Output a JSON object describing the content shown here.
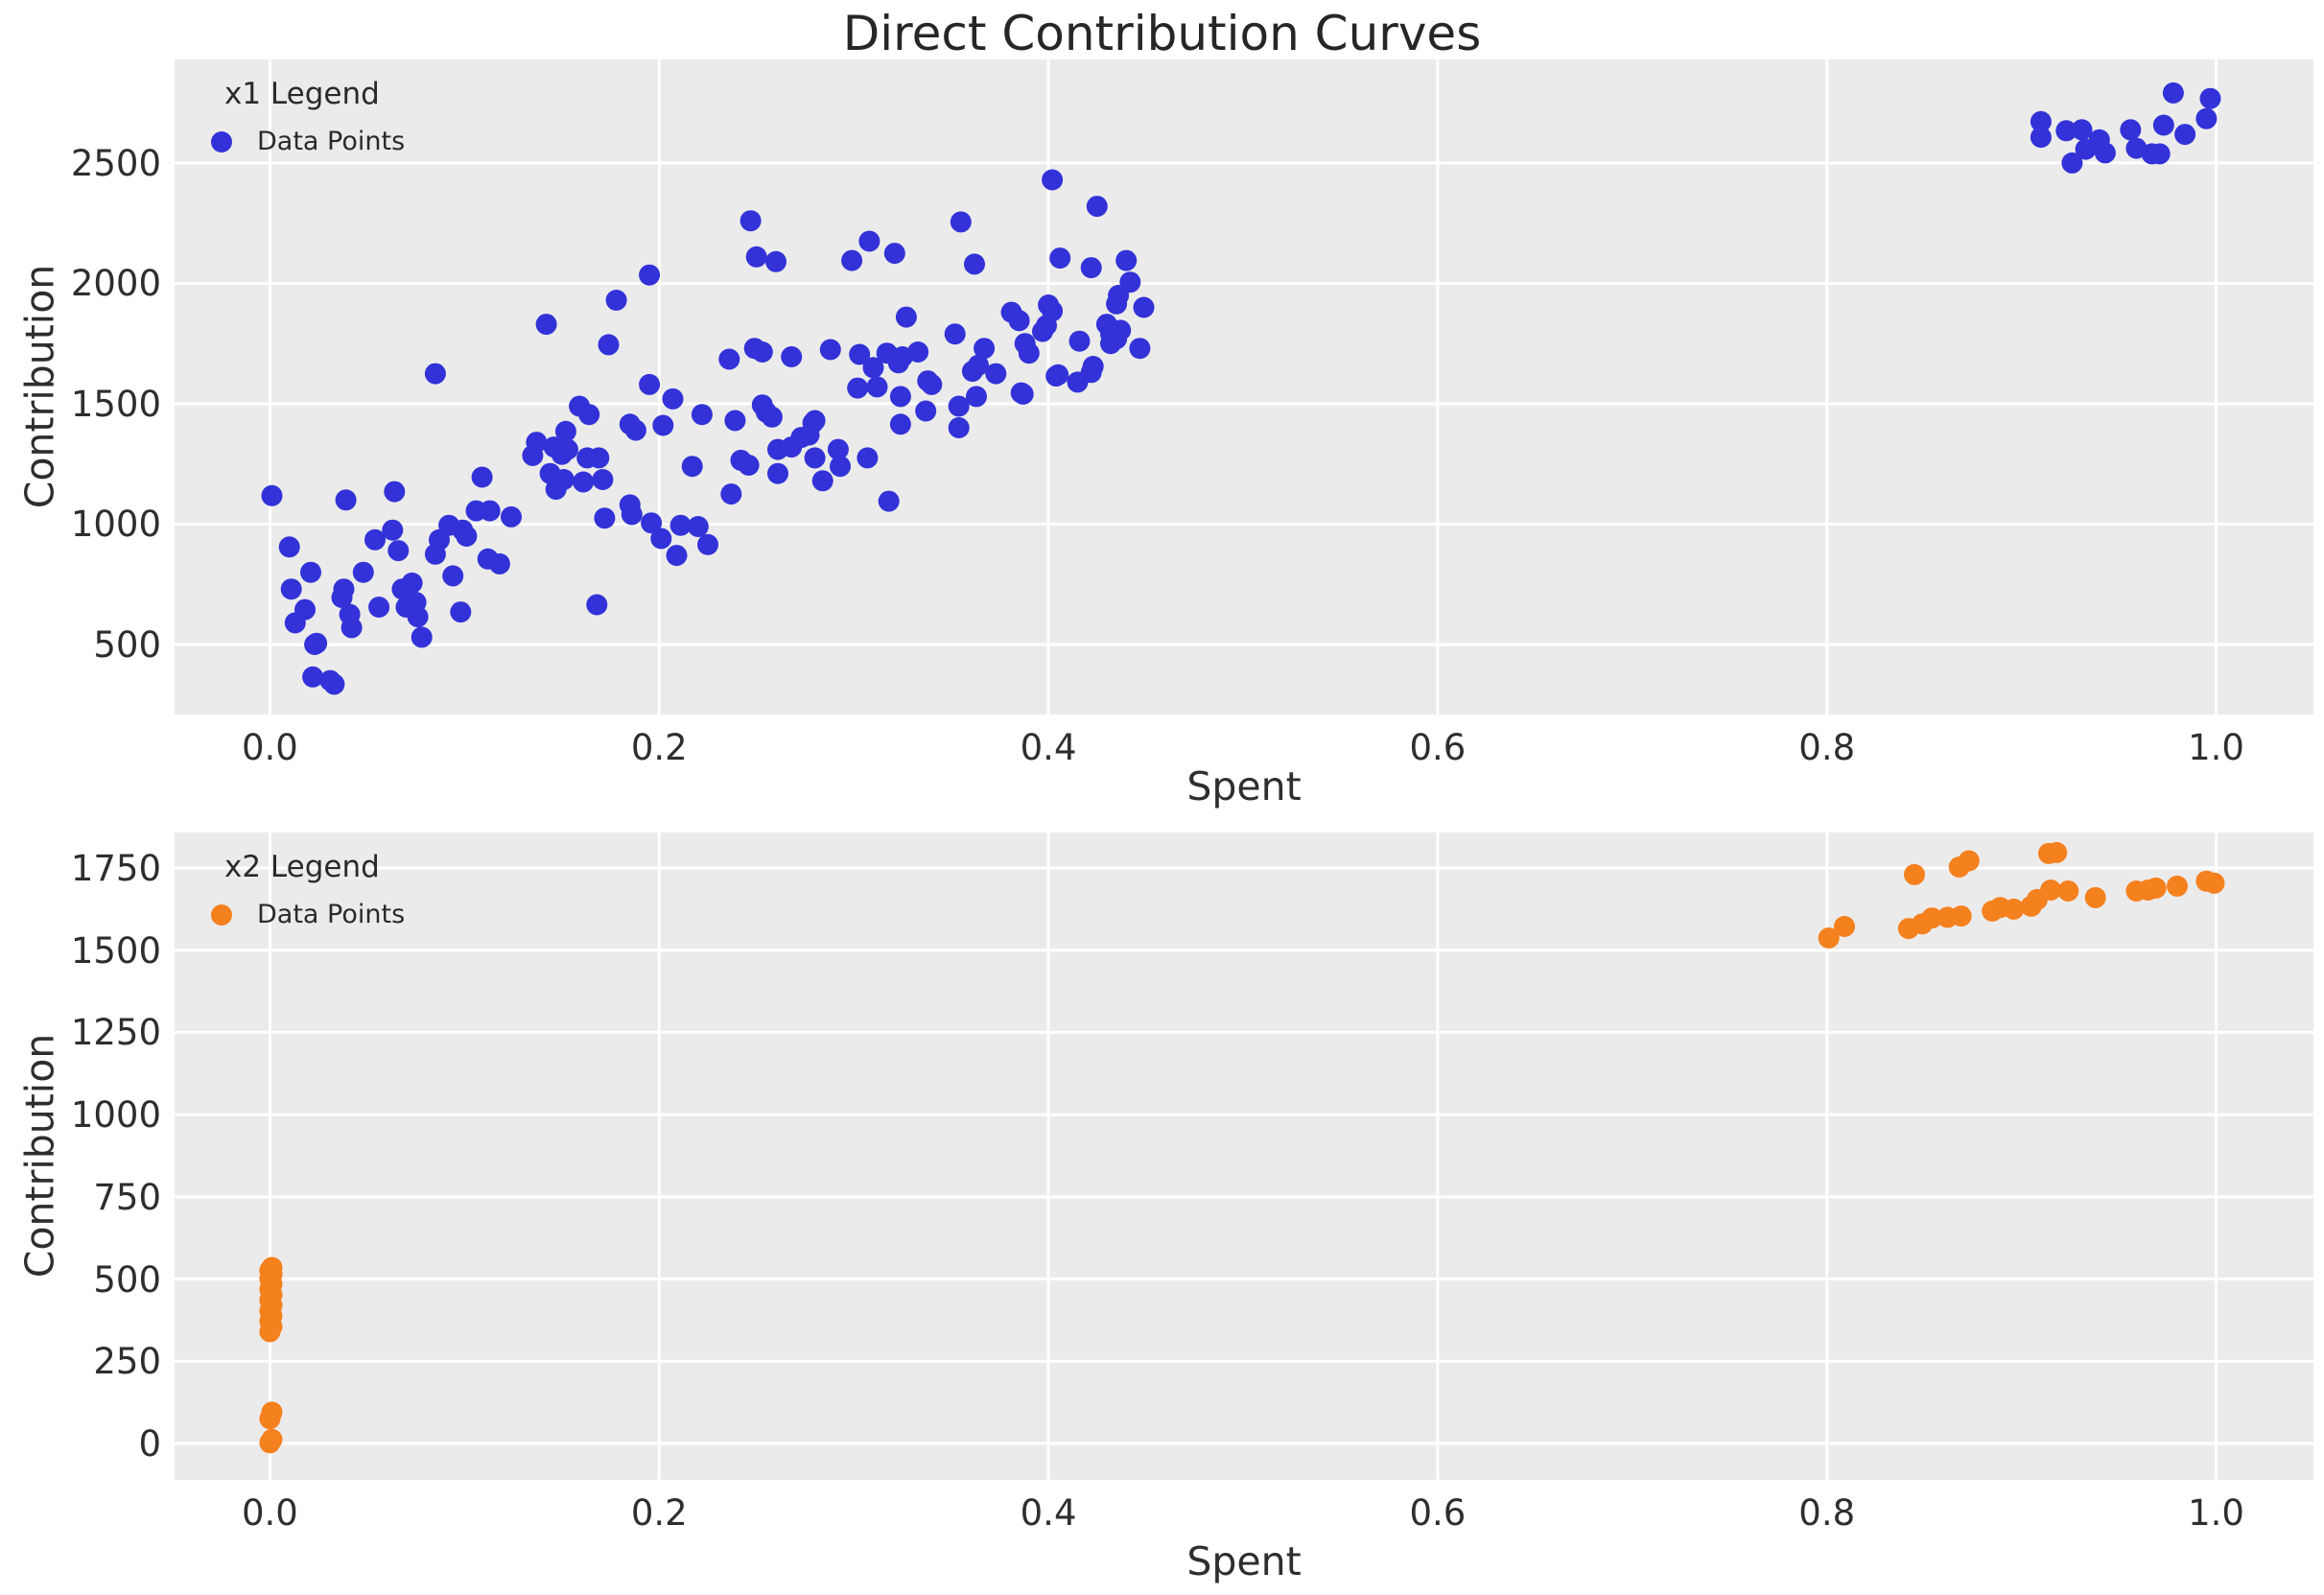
{
  "title": "Direct Contribution Curves",
  "colors": {
    "figure_bg": "#ffffff",
    "plot_bg": "#ebebeb",
    "grid": "#ffffff",
    "text": "#2e2e2e",
    "series1": "#3232d8",
    "series2": "#f5801e"
  },
  "chart_data": [
    {
      "type": "scatter",
      "subplot": "top",
      "xlabel": "Spent",
      "ylabel": "Contribution",
      "legend": {
        "title": "x1 Legend",
        "entries": [
          {
            "label": "Data Points",
            "color": "#3232d8"
          }
        ]
      },
      "legend_position": "upper-left",
      "grid": true,
      "xlim": [
        -0.049,
        1.05
      ],
      "ylim": [
        209,
        2930
      ],
      "xtick_values": [
        0.0,
        0.2,
        0.4,
        0.6,
        0.8,
        1.0
      ],
      "xtick_labels": [
        "0.0",
        "0.2",
        "0.4",
        "0.6",
        "0.8",
        "1.0"
      ],
      "ytick_values": [
        500,
        1000,
        1500,
        2000,
        2500
      ],
      "ytick_labels": [
        "500",
        "1000",
        "1500",
        "2000",
        "2500"
      ],
      "series": [
        {
          "name": "Data Points",
          "color": "#3232d8",
          "marker": "circle",
          "points": [
            [
              0.001,
              1118
            ],
            [
              0.01,
              905
            ],
            [
              0.011,
              730
            ],
            [
              0.013,
              590
            ],
            [
              0.018,
              645
            ],
            [
              0.021,
              800
            ],
            [
              0.022,
              365
            ],
            [
              0.023,
              500
            ],
            [
              0.024,
              505
            ],
            [
              0.031,
              350
            ],
            [
              0.033,
              335
            ],
            [
              0.037,
              695
            ],
            [
              0.038,
              730
            ],
            [
              0.039,
              1100
            ],
            [
              0.041,
              625
            ],
            [
              0.042,
              570
            ],
            [
              0.048,
              800
            ],
            [
              0.054,
              935
            ],
            [
              0.056,
              655
            ],
            [
              0.064,
              1135
            ],
            [
              0.063,
              975
            ],
            [
              0.066,
              890
            ],
            [
              0.068,
              730
            ],
            [
              0.07,
              655
            ],
            [
              0.073,
              755
            ],
            [
              0.075,
              675
            ],
            [
              0.076,
              615
            ],
            [
              0.078,
              530
            ],
            [
              0.085,
              875
            ],
            [
              0.085,
              1625
            ],
            [
              0.087,
              935
            ],
            [
              0.092,
              995
            ],
            [
              0.094,
              785
            ],
            [
              0.098,
              635
            ],
            [
              0.099,
              975
            ],
            [
              0.101,
              950
            ],
            [
              0.106,
              1055
            ],
            [
              0.109,
              1195
            ],
            [
              0.112,
              855
            ],
            [
              0.113,
              1055
            ],
            [
              0.118,
              835
            ],
            [
              0.124,
              1030
            ],
            [
              0.135,
              1285
            ],
            [
              0.137,
              1340
            ],
            [
              0.142,
              1830
            ],
            [
              0.144,
              1210
            ],
            [
              0.146,
              1320
            ],
            [
              0.147,
              1145
            ],
            [
              0.15,
              1290
            ],
            [
              0.151,
              1185
            ],
            [
              0.152,
              1385
            ],
            [
              0.153,
              1310
            ],
            [
              0.159,
              1490
            ],
            [
              0.161,
              1175
            ],
            [
              0.163,
              1275
            ],
            [
              0.164,
              1455
            ],
            [
              0.168,
              665
            ],
            [
              0.169,
              1275
            ],
            [
              0.171,
              1185
            ],
            [
              0.172,
              1025
            ],
            [
              0.174,
              1745
            ],
            [
              0.178,
              1930
            ],
            [
              0.185,
              1415
            ],
            [
              0.185,
              1080
            ],
            [
              0.186,
              1040
            ],
            [
              0.188,
              1390
            ],
            [
              0.195,
              2035
            ],
            [
              0.195,
              1580
            ],
            [
              0.196,
              1005
            ],
            [
              0.201,
              940
            ],
            [
              0.202,
              1410
            ],
            [
              0.207,
              1520
            ],
            [
              0.209,
              870
            ],
            [
              0.211,
              995
            ],
            [
              0.217,
              1240
            ],
            [
              0.22,
              990
            ],
            [
              0.222,
              1455
            ],
            [
              0.225,
              915
            ],
            [
              0.236,
              1685
            ],
            [
              0.237,
              1125
            ],
            [
              0.239,
              1430
            ],
            [
              0.242,
              1265
            ],
            [
              0.246,
              1245
            ],
            [
              0.247,
              2260
            ],
            [
              0.249,
              1730
            ],
            [
              0.25,
              2110
            ],
            [
              0.253,
              1495
            ],
            [
              0.253,
              1715
            ],
            [
              0.255,
              1465
            ],
            [
              0.258,
              1445
            ],
            [
              0.26,
              2090
            ],
            [
              0.261,
              1310
            ],
            [
              0.261,
              1210
            ],
            [
              0.268,
              1695
            ],
            [
              0.268,
              1320
            ],
            [
              0.273,
              1360
            ],
            [
              0.277,
              1370
            ],
            [
              0.279,
              1420
            ],
            [
              0.28,
              1430
            ],
            [
              0.28,
              1275
            ],
            [
              0.284,
              1180
            ],
            [
              0.288,
              1725
            ],
            [
              0.292,
              1310
            ],
            [
              0.293,
              1240
            ],
            [
              0.299,
              2095
            ],
            [
              0.302,
              1565
            ],
            [
              0.303,
              1705
            ],
            [
              0.307,
              1275
            ],
            [
              0.308,
              2175
            ],
            [
              0.31,
              1650
            ],
            [
              0.312,
              1570
            ],
            [
              0.317,
              1710
            ],
            [
              0.318,
              1095
            ],
            [
              0.321,
              2125
            ],
            [
              0.323,
              1670
            ],
            [
              0.324,
              1415
            ],
            [
              0.324,
              1530
            ],
            [
              0.325,
              1695
            ],
            [
              0.327,
              1860
            ],
            [
              0.333,
              1715
            ],
            [
              0.337,
              1470
            ],
            [
              0.338,
              1595
            ],
            [
              0.34,
              1580
            ],
            [
              0.352,
              1790
            ],
            [
              0.354,
              1490
            ],
            [
              0.354,
              1400
            ],
            [
              0.355,
              2255
            ],
            [
              0.361,
              1635
            ],
            [
              0.362,
              2080
            ],
            [
              0.363,
              1530
            ],
            [
              0.364,
              1660
            ],
            [
              0.367,
              1730
            ],
            [
              0.373,
              1625
            ],
            [
              0.381,
              1880
            ],
            [
              0.385,
              1845
            ],
            [
              0.386,
              1545
            ],
            [
              0.387,
              1540
            ],
            [
              0.388,
              1750
            ],
            [
              0.39,
              1710
            ],
            [
              0.397,
              1800
            ],
            [
              0.399,
              1825
            ],
            [
              0.4,
              1910
            ],
            [
              0.402,
              2430
            ],
            [
              0.402,
              1885
            ],
            [
              0.404,
              1615
            ],
            [
              0.405,
              1620
            ],
            [
              0.406,
              2105
            ],
            [
              0.415,
              1590
            ],
            [
              0.416,
              1760
            ],
            [
              0.422,
              2065
            ],
            [
              0.422,
              1630
            ],
            [
              0.423,
              1655
            ],
            [
              0.425,
              2320
            ],
            [
              0.43,
              1830
            ],
            [
              0.432,
              1790
            ],
            [
              0.432,
              1750
            ],
            [
              0.435,
              1915
            ],
            [
              0.435,
              1770
            ],
            [
              0.436,
              1950
            ],
            [
              0.437,
              1805
            ],
            [
              0.44,
              2095
            ],
            [
              0.442,
              2005
            ],
            [
              0.447,
              1730
            ],
            [
              0.449,
              1900
            ],
            [
              0.91,
              2672
            ],
            [
              0.91,
              2607
            ],
            [
              0.923,
              2634
            ],
            [
              0.926,
              2500
            ],
            [
              0.931,
              2638
            ],
            [
              0.933,
              2557
            ],
            [
              0.94,
              2596
            ],
            [
              0.943,
              2542
            ],
            [
              0.956,
              2638
            ],
            [
              0.959,
              2561
            ],
            [
              0.967,
              2538
            ],
            [
              0.971,
              2538
            ],
            [
              0.973,
              2657
            ],
            [
              0.978,
              2791
            ],
            [
              0.984,
              2619
            ],
            [
              0.995,
              2684
            ],
            [
              0.997,
              2768
            ]
          ]
        }
      ]
    },
    {
      "type": "scatter",
      "subplot": "bottom",
      "xlabel": "Spent",
      "ylabel": "Contribution",
      "legend": {
        "title": "x2 Legend",
        "entries": [
          {
            "label": "Data Points",
            "color": "#f5801e"
          }
        ]
      },
      "legend_position": "upper-left",
      "grid": true,
      "xlim": [
        -0.049,
        1.05
      ],
      "ylim": [
        -111,
        1858
      ],
      "xtick_values": [
        0.0,
        0.2,
        0.4,
        0.6,
        0.8,
        1.0
      ],
      "xtick_labels": [
        "0.0",
        "0.2",
        "0.4",
        "0.6",
        "0.8",
        "1.0"
      ],
      "ytick_values": [
        0,
        250,
        500,
        750,
        1000,
        1250,
        1500,
        1750
      ],
      "ytick_labels": [
        "0",
        "250",
        "500",
        "750",
        "1000",
        "1250",
        "1500",
        "1750"
      ],
      "series": [
        {
          "name": "Data Points",
          "color": "#f5801e",
          "marker": "circle",
          "points": [
            [
              0.0,
              2
            ],
            [
              0.001,
              12
            ],
            [
              0.0,
              75
            ],
            [
              0.001,
              95
            ],
            [
              0.0,
              340
            ],
            [
              0.001,
              355
            ],
            [
              0.0,
              372
            ],
            [
              0.001,
              388
            ],
            [
              0.0,
              404
            ],
            [
              0.001,
              420
            ],
            [
              0.0,
              436
            ],
            [
              0.001,
              452
            ],
            [
              0.0,
              468
            ],
            [
              0.001,
              484
            ],
            [
              0.0,
              500
            ],
            [
              0.001,
              514
            ],
            [
              0.0,
              526
            ],
            [
              0.001,
              535
            ],
            [
              0.801,
              1537
            ],
            [
              0.809,
              1572
            ],
            [
              0.842,
              1566
            ],
            [
              0.845,
              1730
            ],
            [
              0.849,
              1580
            ],
            [
              0.854,
              1598
            ],
            [
              0.862,
              1600
            ],
            [
              0.868,
              1753
            ],
            [
              0.869,
              1604
            ],
            [
              0.873,
              1772
            ],
            [
              0.885,
              1619
            ],
            [
              0.889,
              1630
            ],
            [
              0.896,
              1625
            ],
            [
              0.905,
              1634
            ],
            [
              0.908,
              1654
            ],
            [
              0.914,
              1794
            ],
            [
              0.915,
              1683
            ],
            [
              0.918,
              1797
            ],
            [
              0.924,
              1680
            ],
            [
              0.938,
              1660
            ],
            [
              0.959,
              1680
            ],
            [
              0.965,
              1683
            ],
            [
              0.969,
              1689
            ],
            [
              0.98,
              1695
            ],
            [
              0.995,
              1710
            ],
            [
              0.999,
              1704
            ]
          ]
        }
      ]
    }
  ]
}
